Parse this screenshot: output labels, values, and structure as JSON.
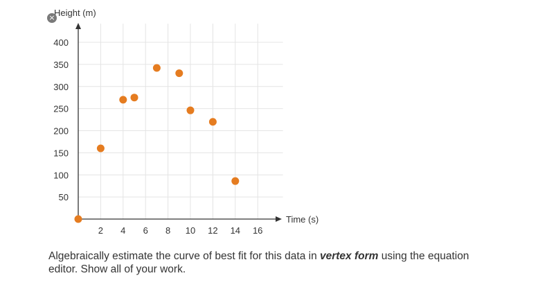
{
  "icons": {
    "close": "close-icon",
    "close_glyph": "×"
  },
  "colors": {
    "point": "#e57c20",
    "axis": "#333333",
    "grid": "#e4e4e4",
    "text": "#333333"
  },
  "chart_data": {
    "type": "scatter",
    "ylabel": "Height (m)",
    "xlabel": "Time (s)",
    "x_ticks": [
      2,
      4,
      6,
      8,
      10,
      12,
      14,
      16
    ],
    "y_ticks": [
      50,
      100,
      150,
      200,
      250,
      300,
      350,
      400
    ],
    "xlim": [
      0,
      18
    ],
    "ylim": [
      0,
      450
    ],
    "grid": true,
    "points": [
      {
        "x": 0,
        "y": 0
      },
      {
        "x": 2,
        "y": 160
      },
      {
        "x": 4,
        "y": 270
      },
      {
        "x": 5,
        "y": 275
      },
      {
        "x": 7,
        "y": 342
      },
      {
        "x": 9,
        "y": 330
      },
      {
        "x": 10,
        "y": 246
      },
      {
        "x": 12,
        "y": 220
      },
      {
        "x": 14,
        "y": 86
      }
    ]
  },
  "prompt": {
    "before": "Algebraically estimate the curve of best fit for this data in ",
    "emphasis": "vertex form",
    "after": " using the equation editor. Show all of your work."
  }
}
